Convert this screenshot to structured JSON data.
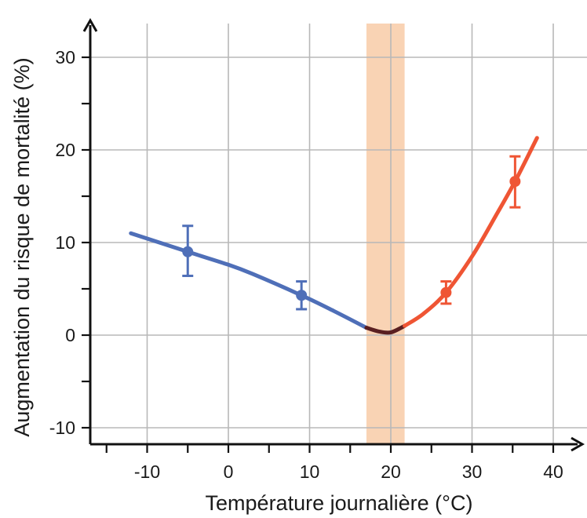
{
  "chart_data": {
    "type": "line",
    "title": "",
    "xlabel": "Température journalière (°C)",
    "ylabel": "Augmentation du risque de mortalité (%)",
    "xlim": [
      -17,
      42
    ],
    "ylim": [
      -11,
      33
    ],
    "x_ticks": [
      -10,
      0,
      10,
      20,
      30,
      40
    ],
    "y_ticks": [
      -10,
      0,
      10,
      20,
      30
    ],
    "x_minor_ticks": [
      -15,
      -5,
      5,
      15,
      25,
      35
    ],
    "y_minor_ticks": [
      -5,
      5,
      15,
      25
    ],
    "grid": true,
    "shaded_band": {
      "x_from": 17,
      "x_to": 21.7,
      "color": "#f9d3b4"
    },
    "series": [
      {
        "color": "#4f6fb8",
        "points": [
          [
            -12,
            11
          ],
          [
            -5,
            9
          ],
          [
            0,
            7.6
          ],
          [
            3,
            6.6
          ],
          [
            9,
            4.3
          ],
          [
            13,
            2.6
          ],
          [
            17,
            0.8
          ]
        ]
      },
      {
        "color": "#5a1f21",
        "points": [
          [
            17,
            0.8
          ],
          [
            18.5,
            0.4
          ],
          [
            20,
            0.3
          ],
          [
            21.7,
            1.0
          ]
        ]
      },
      {
        "color": "#ef5534",
        "points": [
          [
            21.7,
            1.0
          ],
          [
            24,
            2.3
          ],
          [
            26.8,
            4.6
          ],
          [
            30,
            8.5
          ],
          [
            33,
            13.0
          ],
          [
            35.3,
            16.6
          ],
          [
            38,
            21.3
          ]
        ]
      }
    ],
    "error_bars": [
      {
        "x": -5,
        "y": 9,
        "low": 6.4,
        "high": 11.8,
        "color": "#4f6fb8"
      },
      {
        "x": 9,
        "y": 4.3,
        "low": 2.8,
        "high": 5.8,
        "color": "#4f6fb8"
      },
      {
        "x": 26.8,
        "y": 4.6,
        "low": 3.4,
        "high": 5.8,
        "color": "#ef5534"
      },
      {
        "x": 35.3,
        "y": 16.6,
        "low": 13.8,
        "high": 19.3,
        "color": "#ef5534"
      }
    ]
  }
}
